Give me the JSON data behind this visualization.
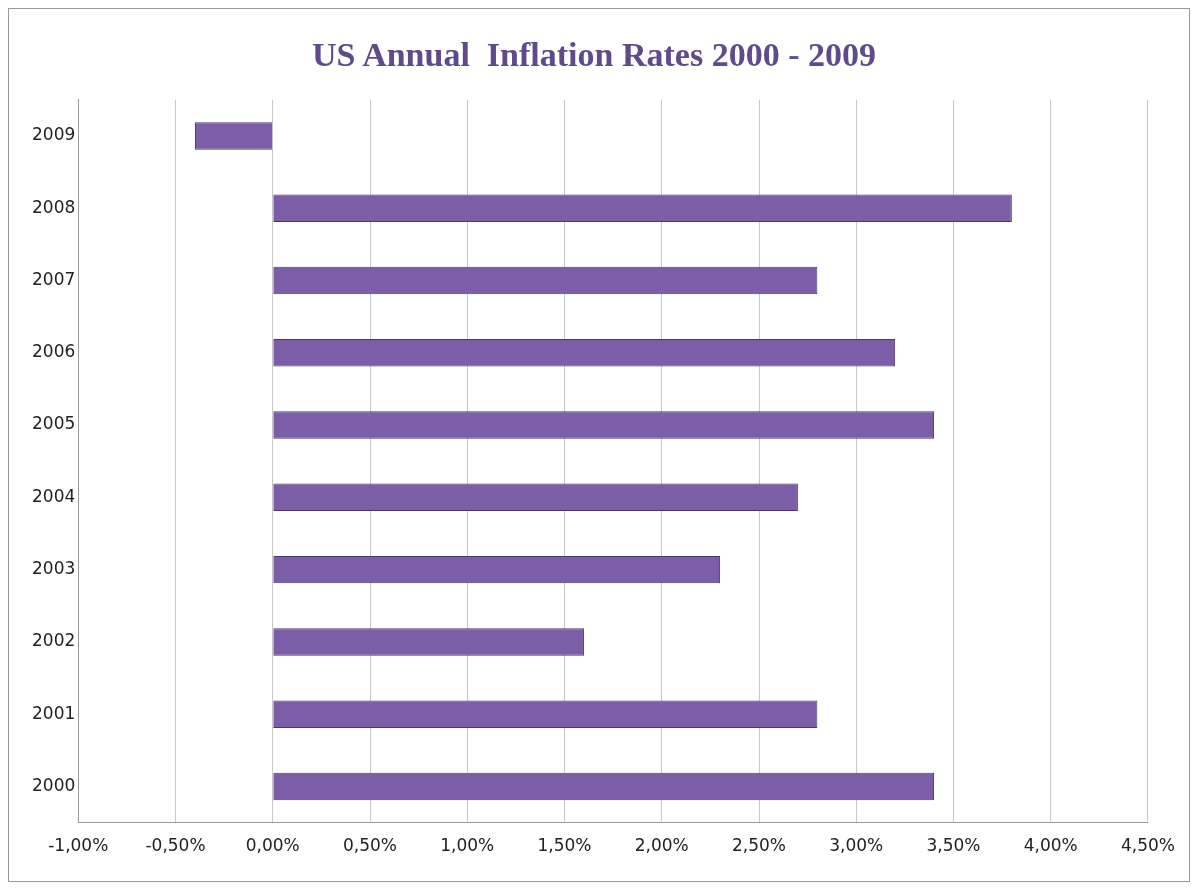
{
  "chart_data": {
    "type": "bar",
    "orientation": "horizontal",
    "title": "US Annual  Inflation Rates 2000 - 2009",
    "categories": [
      "2009",
      "2008",
      "2007",
      "2006",
      "2005",
      "2004",
      "2003",
      "2002",
      "2001",
      "2000"
    ],
    "values": [
      -0.4,
      3.8,
      2.8,
      3.2,
      3.4,
      2.7,
      2.3,
      1.6,
      2.8,
      3.4
    ],
    "color": "#7b5ea7",
    "xlim": [
      -1,
      4.5
    ],
    "xticks": [
      {
        "value": -1,
        "label": "-1,00%"
      },
      {
        "value": -0.5,
        "label": "-0,50%"
      },
      {
        "value": 0,
        "label": "0,00%"
      },
      {
        "value": 0.5,
        "label": "0,50%"
      },
      {
        "value": 1,
        "label": "1,00%"
      },
      {
        "value": 1.5,
        "label": "1,50%"
      },
      {
        "value": 2,
        "label": "2,00%"
      },
      {
        "value": 2.5,
        "label": "2,50%"
      },
      {
        "value": 3,
        "label": "3,00%"
      },
      {
        "value": 3.5,
        "label": "3,50%"
      },
      {
        "value": 4,
        "label": "4,00%"
      },
      {
        "value": 4.5,
        "label": "4,50%"
      }
    ],
    "grid": "x",
    "legend": false
  }
}
